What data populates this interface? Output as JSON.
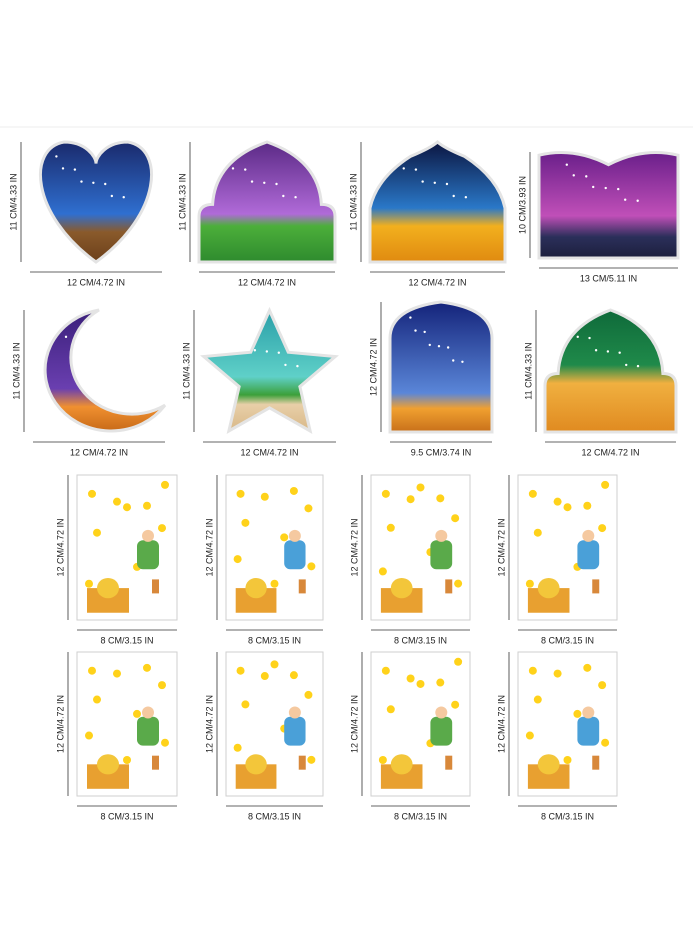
{
  "items": [
    {
      "height_label": "11 CM/4.33 IN",
      "width_label": "12 CM/4.72 IN"
    },
    {
      "height_label": "11 CM/4.33 IN",
      "width_label": "12 CM/4.72 IN"
    },
    {
      "height_label": "11 CM/4.33 IN",
      "width_label": "12 CM/4.72 IN"
    },
    {
      "height_label": "10 CM/3.93 IN",
      "width_label": "13 CM/5.11 IN"
    },
    {
      "height_label": "11 CM/4.33 IN",
      "width_label": "12 CM/4.72 IN"
    },
    {
      "height_label": "11 CM/4.33 IN",
      "width_label": "12 CM/4.72 IN"
    },
    {
      "height_label": "12 CM/4.72 IN",
      "width_label": "9.5 CM/3.74 IN"
    },
    {
      "height_label": "11 CM/4.33 IN",
      "width_label": "12 CM/4.72 IN"
    },
    {
      "height_label": "12 CM/4.72 IN",
      "width_label": "8 CM/3.15 IN"
    },
    {
      "height_label": "12 CM/4.72 IN",
      "width_label": "8 CM/3.15 IN"
    },
    {
      "height_label": "12 CM/4.72 IN",
      "width_label": "8 CM/3.15 IN"
    },
    {
      "height_label": "12 CM/4.72 IN",
      "width_label": "8 CM/3.15 IN"
    },
    {
      "height_label": "12 CM/4.72 IN",
      "width_label": "8 CM/3.15 IN"
    },
    {
      "height_label": "12 CM/4.72 IN",
      "width_label": "8 CM/3.15 IN"
    },
    {
      "height_label": "12 CM/4.72 IN",
      "width_label": "8 CM/3.15 IN"
    },
    {
      "height_label": "12 CM/4.72 IN",
      "width_label": "8 CM/3.15 IN"
    }
  ]
}
